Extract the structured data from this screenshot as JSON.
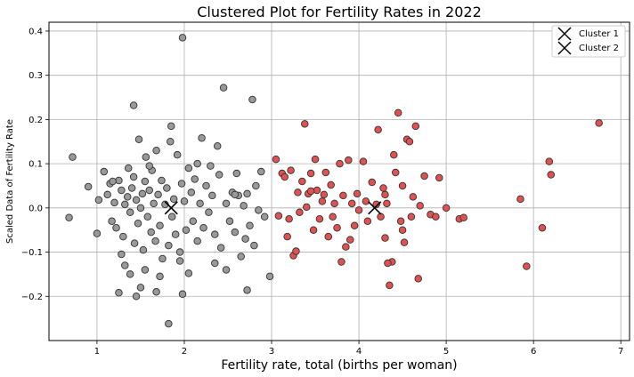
{
  "chart_data": {
    "type": "scatter",
    "title": "Clustered Plot for Fertility Rates in 2022",
    "xlabel": "Fertility rate, total (births per woman)",
    "ylabel": "Scaled Data of Fertility Rate",
    "xlim": [
      0.45,
      7.1
    ],
    "ylim": [
      -0.3,
      0.42
    ],
    "xticks": [
      1,
      2,
      3,
      4,
      5,
      6,
      7
    ],
    "yticks": [
      -0.2,
      -0.1,
      0.0,
      0.1,
      0.2,
      0.3,
      0.4
    ],
    "xtick_labels": [
      "1",
      "2",
      "3",
      "4",
      "5",
      "6",
      "7"
    ],
    "ytick_labels": [
      "−0.2",
      "−0.1",
      "0.0",
      "0.1",
      "0.2",
      "0.3",
      "0.4"
    ],
    "grid": true,
    "legend_position": "top-right",
    "colors": {
      "cluster0": "#999999",
      "cluster1": "#e05252",
      "edge": "#333333",
      "centroid": "#000000"
    },
    "legend": [
      {
        "label": "Cluster 1"
      },
      {
        "label": "Cluster 2"
      }
    ],
    "centroids": [
      {
        "name": "Cluster 1",
        "x": 1.85,
        "y": 0.0
      },
      {
        "name": "Cluster 2",
        "x": 4.18,
        "y": 0.0
      }
    ],
    "series": [
      {
        "color_key": "cluster0",
        "points": [
          [
            0.72,
            0.115
          ],
          [
            0.68,
            -0.022
          ],
          [
            0.9,
            0.048
          ],
          [
            1.02,
            0.018
          ],
          [
            1.0,
            -0.058
          ],
          [
            1.08,
            0.082
          ],
          [
            1.12,
            0.03
          ],
          [
            1.15,
            0.055
          ],
          [
            1.17,
            -0.03
          ],
          [
            1.2,
            0.012
          ],
          [
            1.22,
            -0.045
          ],
          [
            1.25,
            0.062
          ],
          [
            1.28,
            0.04
          ],
          [
            1.3,
            -0.065
          ],
          [
            1.32,
            0.008
          ],
          [
            1.35,
            0.025
          ],
          [
            1.36,
            0.09
          ],
          [
            1.38,
            -0.01
          ],
          [
            1.4,
            0.045
          ],
          [
            1.42,
            0.07
          ],
          [
            1.43,
            -0.08
          ],
          [
            1.45,
            0.018
          ],
          [
            1.47,
            -0.035
          ],
          [
            1.48,
            0.155
          ],
          [
            1.5,
            0.0
          ],
          [
            1.52,
            0.032
          ],
          [
            1.53,
            -0.095
          ],
          [
            1.55,
            0.06
          ],
          [
            1.56,
            0.115
          ],
          [
            1.58,
            -0.02
          ],
          [
            1.6,
            0.04
          ],
          [
            1.62,
            -0.055
          ],
          [
            1.63,
            0.085
          ],
          [
            1.65,
            0.01
          ],
          [
            1.67,
            -0.075
          ],
          [
            1.68,
            0.13
          ],
          [
            1.7,
            0.03
          ],
          [
            1.72,
            -0.04
          ],
          [
            1.74,
            0.062
          ],
          [
            1.75,
            -0.115
          ],
          [
            1.78,
            0.008
          ],
          [
            1.8,
            0.045
          ],
          [
            1.82,
            -0.085
          ],
          [
            1.84,
            0.15
          ],
          [
            1.86,
            -0.02
          ],
          [
            1.88,
            0.02
          ],
          [
            1.9,
            -0.06
          ],
          [
            1.92,
            0.12
          ],
          [
            1.95,
            -0.1
          ],
          [
            1.97,
            0.055
          ],
          [
            2.0,
            0.015
          ],
          [
            2.02,
            -0.05
          ],
          [
            2.05,
            0.09
          ],
          [
            2.08,
            0.035
          ],
          [
            2.1,
            -0.03
          ],
          [
            2.12,
            0.065
          ],
          [
            2.15,
            -0.075
          ],
          [
            2.18,
            0.01
          ],
          [
            2.2,
            0.158
          ],
          [
            2.22,
            -0.045
          ],
          [
            2.25,
            0.05
          ],
          [
            2.28,
            -0.01
          ],
          [
            2.3,
            0.095
          ],
          [
            2.32,
            0.028
          ],
          [
            2.35,
            -0.06
          ],
          [
            2.38,
            0.14
          ],
          [
            2.4,
            0.075
          ],
          [
            2.42,
            -0.09
          ],
          [
            2.45,
            0.272
          ],
          [
            2.48,
            0.01
          ],
          [
            2.52,
            -0.03
          ],
          [
            2.55,
            0.035
          ],
          [
            2.58,
            -0.055
          ],
          [
            2.6,
            0.078
          ],
          [
            2.62,
            0.028
          ],
          [
            2.65,
            -0.11
          ],
          [
            2.68,
            0.005
          ],
          [
            2.7,
            -0.07
          ],
          [
            2.72,
            0.032
          ],
          [
            2.75,
            -0.04
          ],
          [
            2.78,
            0.245
          ],
          [
            2.8,
            -0.085
          ],
          [
            2.82,
            0.05
          ],
          [
            2.85,
            -0.005
          ],
          [
            2.88,
            0.082
          ],
          [
            2.92,
            -0.02
          ],
          [
            2.98,
            -0.155
          ],
          [
            1.98,
            0.385
          ],
          [
            1.82,
            -0.262
          ],
          [
            1.45,
            -0.2
          ],
          [
            1.25,
            -0.192
          ],
          [
            1.42,
            0.232
          ],
          [
            1.55,
            -0.14
          ],
          [
            1.68,
            -0.19
          ],
          [
            1.98,
            -0.195
          ],
          [
            2.05,
            -0.148
          ],
          [
            2.72,
            -0.186
          ],
          [
            1.32,
            -0.13
          ],
          [
            1.5,
            -0.18
          ],
          [
            1.38,
            -0.15
          ],
          [
            1.18,
            0.06
          ],
          [
            1.28,
            -0.105
          ],
          [
            1.6,
            0.095
          ],
          [
            1.72,
            -0.155
          ],
          [
            1.85,
            0.185
          ],
          [
            1.95,
            -0.12
          ],
          [
            2.15,
            0.1
          ],
          [
            2.35,
            -0.125
          ],
          [
            2.48,
            -0.14
          ],
          [
            2.58,
            0.03
          ]
        ]
      },
      {
        "color_key": "cluster1",
        "points": [
          [
            3.05,
            0.11
          ],
          [
            3.08,
            -0.018
          ],
          [
            3.12,
            0.078
          ],
          [
            3.15,
            0.07
          ],
          [
            3.18,
            -0.065
          ],
          [
            3.2,
            -0.025
          ],
          [
            3.22,
            0.085
          ],
          [
            3.25,
            -0.108
          ],
          [
            3.28,
            -0.098
          ],
          [
            3.3,
            0.035
          ],
          [
            3.32,
            -0.01
          ],
          [
            3.35,
            0.06
          ],
          [
            3.38,
            0.19
          ],
          [
            3.4,
            0.002
          ],
          [
            3.42,
            0.032
          ],
          [
            3.45,
            0.078
          ],
          [
            3.48,
            -0.05
          ],
          [
            3.5,
            0.11
          ],
          [
            3.52,
            0.04
          ],
          [
            3.55,
            -0.025
          ],
          [
            3.58,
            0.015
          ],
          [
            3.6,
            0.03
          ],
          [
            3.62,
            0.08
          ],
          [
            3.65,
            -0.065
          ],
          [
            3.68,
            0.052
          ],
          [
            3.7,
            -0.02
          ],
          [
            3.72,
            0.01
          ],
          [
            3.75,
            -0.045
          ],
          [
            3.78,
            0.1
          ],
          [
            3.8,
            -0.122
          ],
          [
            3.82,
            0.028
          ],
          [
            3.85,
            -0.088
          ],
          [
            3.88,
            0.108
          ],
          [
            3.9,
            -0.072
          ],
          [
            3.92,
            0.01
          ],
          [
            3.95,
            -0.04
          ],
          [
            3.98,
            0.032
          ],
          [
            4.0,
            -0.005
          ],
          [
            4.05,
            0.105
          ],
          [
            4.08,
            0.015
          ],
          [
            4.1,
            -0.03
          ],
          [
            4.15,
            0.058
          ],
          [
            4.2,
            0.008
          ],
          [
            4.22,
            0.177
          ],
          [
            4.25,
            -0.02
          ],
          [
            4.28,
            0.045
          ],
          [
            4.3,
            -0.068
          ],
          [
            4.32,
            0.01
          ],
          [
            4.35,
            -0.175
          ],
          [
            4.38,
            -0.122
          ],
          [
            4.4,
            0.12
          ],
          [
            4.42,
            0.08
          ],
          [
            4.45,
            0.215
          ],
          [
            4.48,
            -0.03
          ],
          [
            4.5,
            0.05
          ],
          [
            4.52,
            -0.078
          ],
          [
            4.55,
            0.155
          ],
          [
            4.58,
            0.15
          ],
          [
            4.6,
            -0.02
          ],
          [
            4.62,
            0.025
          ],
          [
            4.65,
            0.185
          ],
          [
            4.68,
            -0.16
          ],
          [
            4.7,
            0.005
          ],
          [
            4.75,
            0.072
          ],
          [
            4.82,
            -0.015
          ],
          [
            4.88,
            -0.02
          ],
          [
            4.92,
            0.068
          ],
          [
            5.0,
            0.0
          ],
          [
            5.15,
            -0.025
          ],
          [
            5.2,
            -0.022
          ],
          [
            5.85,
            0.02
          ],
          [
            5.92,
            -0.132
          ],
          [
            6.1,
            -0.045
          ],
          [
            6.18,
            0.105
          ],
          [
            6.2,
            0.075
          ],
          [
            6.75,
            0.192
          ],
          [
            4.5,
            -0.05
          ],
          [
            4.33,
            -0.125
          ],
          [
            4.3,
            0.03
          ],
          [
            3.45,
            0.038
          ]
        ]
      }
    ]
  }
}
